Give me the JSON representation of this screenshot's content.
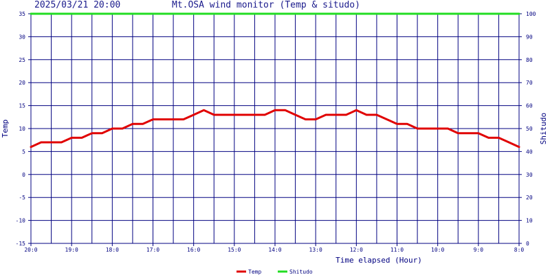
{
  "header": {
    "datetime": "2025/03/21 20:00",
    "title": "Mt.OSA wind monitor (Temp & situdo)"
  },
  "chart_data": {
    "type": "line",
    "xlabel": "Time elapsed (Hour)",
    "ylabel_left": "Temp",
    "ylabel_right": "Shitudo",
    "ylim_left": [
      -15,
      35
    ],
    "ylim_right": [
      0,
      100
    ],
    "y_ticks_left": [
      35,
      30,
      25,
      20,
      15,
      10,
      5,
      0,
      -5,
      -10,
      -15
    ],
    "y_ticks_right": [
      100,
      90,
      80,
      70,
      60,
      50,
      40,
      30,
      20,
      10,
      0
    ],
    "x_tick_labels": [
      "20:0",
      "19:0",
      "18:0",
      "17:0",
      "16:0",
      "15:0",
      "14:0",
      "13:0",
      "12:0",
      "11:0",
      "10:0",
      "9:0",
      "8:0"
    ],
    "x": [
      0,
      0.25,
      0.5,
      0.75,
      1,
      1.25,
      1.5,
      1.75,
      2,
      2.25,
      2.5,
      2.75,
      3,
      3.25,
      3.5,
      3.75,
      4,
      4.25,
      4.5,
      4.75,
      5,
      5.25,
      5.5,
      5.75,
      6,
      6.25,
      6.5,
      6.75,
      7,
      7.25,
      7.5,
      7.75,
      8,
      8.25,
      8.5,
      8.75,
      9,
      9.25,
      9.5,
      9.75,
      10,
      10.25,
      10.5,
      10.75,
      11,
      11.25,
      11.5,
      11.75,
      12
    ],
    "series": [
      {
        "name": "Temp",
        "axis": "left",
        "color": "#e00000",
        "values": [
          6,
          7,
          7,
          7,
          8,
          8,
          9,
          9,
          10,
          10,
          11,
          11,
          12,
          12,
          12,
          12,
          13,
          14,
          13,
          13,
          13,
          13,
          13,
          13,
          14,
          14,
          13,
          12,
          12,
          13,
          13,
          13,
          14,
          13,
          13,
          12,
          11,
          11,
          10,
          10,
          10,
          10,
          9,
          9,
          9,
          8,
          8,
          7,
          6
        ]
      },
      {
        "name": "Shitudo",
        "axis": "right",
        "color": "#22dd22",
        "values": [
          100,
          100,
          100,
          100,
          100,
          100,
          100,
          100,
          100,
          100,
          100,
          100,
          100,
          100,
          100,
          100,
          100,
          100,
          100,
          100,
          100,
          100,
          100,
          100,
          100,
          100,
          100,
          100,
          100,
          100,
          100,
          100,
          100,
          100,
          100,
          100,
          100,
          100,
          100,
          100,
          100,
          100,
          100,
          100,
          100,
          100,
          100,
          100,
          100
        ]
      }
    ],
    "grid": true,
    "legend_placement": "bottom-center",
    "colors": {
      "grid": "#000080",
      "text": "#000080",
      "background": "#ffffff"
    }
  }
}
